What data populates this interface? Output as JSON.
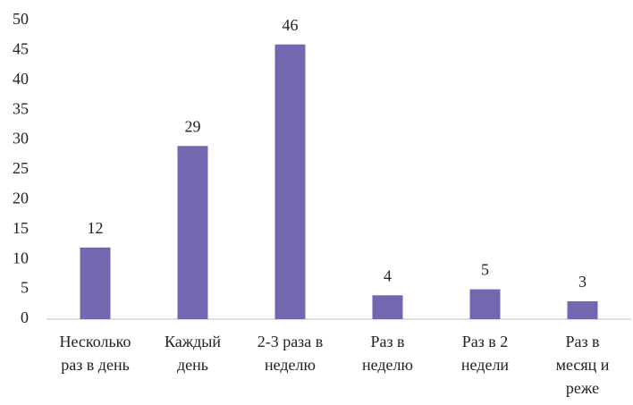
{
  "chart_data": {
    "type": "bar",
    "categories": [
      "Несколько раз в день",
      "Каждый день",
      "2-3 раза в неделю",
      "Раз в неделю",
      "Раз в 2 недели",
      "Раз в месяц и реже"
    ],
    "values": [
      12,
      29,
      46,
      4,
      5,
      3
    ],
    "color": "#7566b0",
    "ylim": [
      0,
      50
    ],
    "yticks": [
      0,
      5,
      10,
      15,
      20,
      25,
      30,
      35,
      40,
      45,
      50
    ],
    "grid": false
  }
}
